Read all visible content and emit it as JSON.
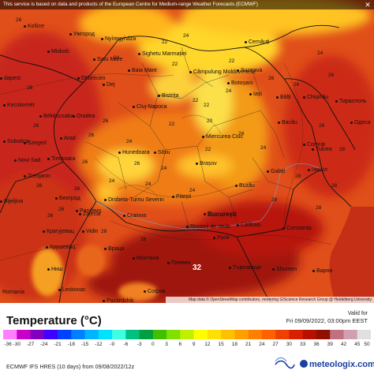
{
  "notice": "This service is based on data and products of the European Centre for Medium-range Weather Forecasts (ECMWF)",
  "close_icon": "✕",
  "region": "Romania",
  "attribution": "Map data © OpenStreetMap contributors, rendering GIScience Research Group @ Heidelberg University",
  "legend": {
    "title": "Temperature (°C)",
    "valid_label": "Valid for",
    "valid_time": "Fri 09/09/2022, 03:00pm EEST",
    "ticks": [
      "-36",
      "-30",
      "-27",
      "-24",
      "-21",
      "-18",
      "-15",
      "-12",
      "-9",
      "-6",
      "-3",
      "0",
      "3",
      "6",
      "9",
      "12",
      "15",
      "18",
      "21",
      "24",
      "27",
      "30",
      "33",
      "36",
      "39",
      "42",
      "45",
      "50"
    ],
    "colors": [
      "#ff7fff",
      "#c800c8",
      "#8000c0",
      "#4000ff",
      "#0040ff",
      "#0080ff",
      "#00b4ff",
      "#00e0ff",
      "#40ffe0",
      "#00c080",
      "#00a040",
      "#40c000",
      "#80e000",
      "#c0f000",
      "#ffff00",
      "#ffe000",
      "#ffc000",
      "#ffa000",
      "#ff8000",
      "#ff6000",
      "#f04000",
      "#d82000",
      "#b81000",
      "#901000",
      "#c07080",
      "#d0a0b0",
      "#e0e0e0"
    ]
  },
  "model": "ECMWF IFS HRES (10 days) from 09/08/2022/12z",
  "brand": "meteologix.com",
  "ecmwf_logo_text": "ECMWF",
  "places": [
    {
      "name": "Košice",
      "big": false
    },
    {
      "name": "Ужгород",
      "big": false
    },
    {
      "name": "Nyíregyháza",
      "big": false
    },
    {
      "name": "Miskolc",
      "big": false
    },
    {
      "name": "Debrecen",
      "big": false
    },
    {
      "name": "dapest",
      "big": false
    },
    {
      "name": "Kecskemét",
      "big": false
    },
    {
      "name": "Békéscsaba",
      "big": false
    },
    {
      "name": "Szeged",
      "big": false
    },
    {
      "name": "Timișoara",
      "big": false
    },
    {
      "name": "Arad",
      "big": false
    },
    {
      "name": "Oradea",
      "big": false
    },
    {
      "name": "Satu Mare",
      "big": false
    },
    {
      "name": "Baia Mare",
      "big": false
    },
    {
      "name": "Sighetu Marmației",
      "big": false
    },
    {
      "name": "Cluj-Napoca",
      "big": false
    },
    {
      "name": "Bistrița",
      "big": false
    },
    {
      "name": "Suceava",
      "big": false
    },
    {
      "name": "Botoșani",
      "big": false
    },
    {
      "name": "Iași",
      "big": false
    },
    {
      "name": "Chișinău",
      "big": false
    },
    {
      "name": "Тирасполь",
      "big": false
    },
    {
      "name": "Одеса",
      "big": false
    },
    {
      "name": "Bacău",
      "big": false
    },
    {
      "name": "Comrat",
      "big": false
    },
    {
      "name": "Galați",
      "big": false
    },
    {
      "name": "Ізмаїл",
      "big": false
    },
    {
      "name": "Tulcea",
      "big": false
    },
    {
      "name": "Buzău",
      "big": false
    },
    {
      "name": "Brașov",
      "big": false
    },
    {
      "name": "Sibiu",
      "big": false
    },
    {
      "name": "Hunedoara",
      "big": false
    },
    {
      "name": "Miercurea Ciuc",
      "big": false
    },
    {
      "name": "Pitești",
      "big": false
    },
    {
      "name": "Drobeta-Turnu Severin",
      "big": false
    },
    {
      "name": "Craiova",
      "big": false
    },
    {
      "name": "București",
      "big": true
    },
    {
      "name": "Roșiorii de Vede",
      "big": false
    },
    {
      "name": "Călărași",
      "big": false
    },
    {
      "name": "Constanța",
      "big": false
    },
    {
      "name": "Русе",
      "big": false
    },
    {
      "name": "Варна",
      "big": false
    },
    {
      "name": "Плевен",
      "big": false
    },
    {
      "name": "Търговище",
      "big": false
    },
    {
      "name": "Монтана",
      "big": false
    },
    {
      "name": "Враца",
      "big": false
    },
    {
      "name": "Ниш",
      "big": false
    },
    {
      "name": "Крушевац",
      "big": false
    },
    {
      "name": "Крагујевац",
      "big": false
    },
    {
      "name": "Београд",
      "big": false
    },
    {
      "name": "Bijeljina",
      "big": false
    },
    {
      "name": "Zrenjanin",
      "big": false
    },
    {
      "name": "Novi Sad",
      "big": false
    },
    {
      "name": "Софиа",
      "big": false
    },
    {
      "name": "Subotica",
      "big": false
    },
    {
      "name": "Pančevo",
      "big": false
    },
    {
      "name": "Vidin",
      "big": false
    },
    {
      "name": "Zaječar",
      "big": false
    },
    {
      "name": "Cernăuți",
      "big": false
    },
    {
      "name": "Bălți",
      "big": false
    },
    {
      "name": "Câmpulung Moldovenesc",
      "big": false
    },
    {
      "name": "Dej",
      "big": false
    },
    {
      "name": "Leskovac",
      "big": false
    },
    {
      "name": "Pazardzhik",
      "big": false
    },
    {
      "name": "Shumen",
      "big": false
    }
  ],
  "isotherm_labels": [
    "26",
    "24",
    "24",
    "22",
    "22",
    "22",
    "22",
    "22",
    "24",
    "22",
    "24",
    "26",
    "26",
    "26",
    "24",
    "24",
    "26",
    "24",
    "26",
    "26",
    "28",
    "26",
    "26",
    "26",
    "28",
    "28",
    "24",
    "22",
    "20",
    "26",
    "24",
    "28",
    "28",
    "26",
    "28",
    "28",
    "28",
    "24",
    "26",
    "28",
    "24"
  ],
  "max_value": "32"
}
